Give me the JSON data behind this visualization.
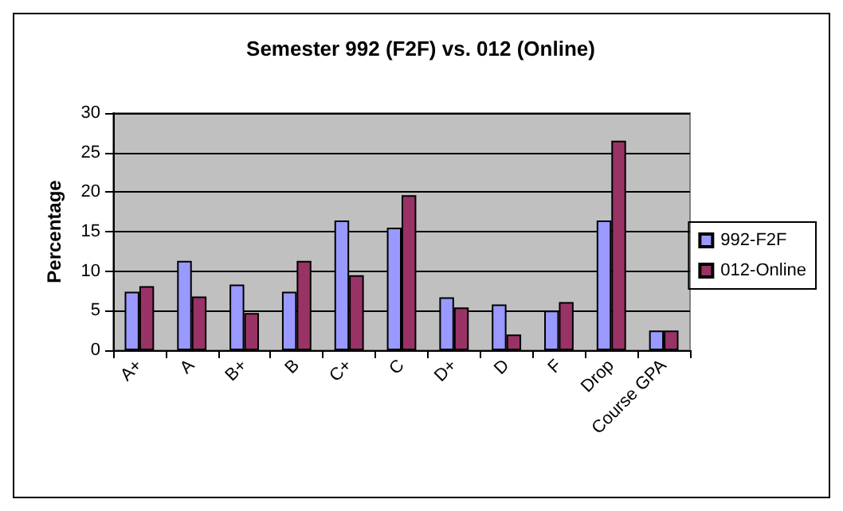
{
  "chart_data": {
    "type": "bar",
    "title": "Semester 992 (F2F) vs. 012 (Online)",
    "ylabel": "Percentage",
    "categories": [
      "A+",
      "A",
      "B+",
      "B",
      "C+",
      "C",
      "D+",
      "D",
      "F",
      "Drop",
      "Course GPA"
    ],
    "series": [
      {
        "name": "992-F2F",
        "color": "#9999ff",
        "values": [
          7.4,
          11.3,
          8.3,
          7.4,
          16.4,
          15.5,
          6.7,
          5.8,
          5.0,
          16.4,
          2.5
        ]
      },
      {
        "name": "012-Online",
        "color": "#993366",
        "values": [
          8.1,
          6.8,
          4.7,
          11.3,
          9.5,
          19.6,
          5.4,
          2.0,
          6.1,
          26.5,
          2.5
        ]
      }
    ],
    "ylim": [
      0,
      30
    ],
    "yticks": [
      0,
      5,
      10,
      15,
      20,
      25,
      30
    ],
    "grid": "y",
    "legend": "right"
  }
}
